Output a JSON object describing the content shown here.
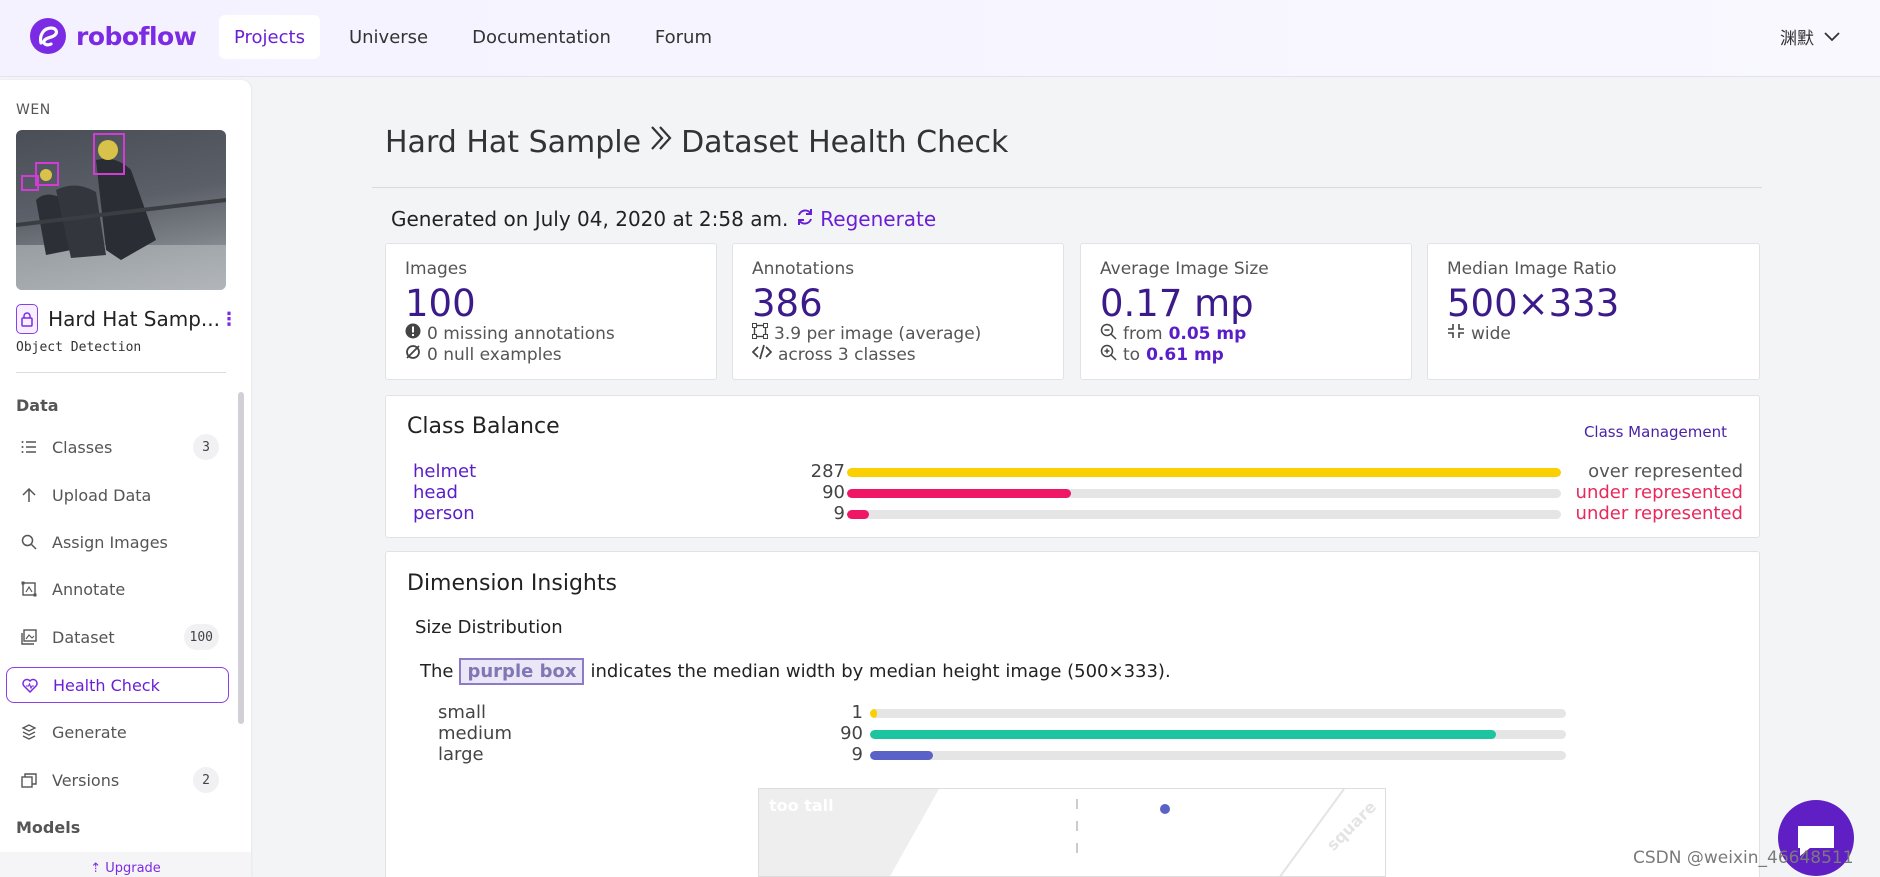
{
  "brand": {
    "name": "roboflow",
    "color": "#7c2be5"
  },
  "nav": {
    "items": [
      "Projects",
      "Universe",
      "Documentation",
      "Forum"
    ],
    "active": 0
  },
  "user": {
    "name": "渊默"
  },
  "sidebar": {
    "workspace": "WEN",
    "project_name": "Hard Hat Samp...",
    "project_type": "Object Detection",
    "sections": {
      "data": "Data",
      "models": "Models"
    },
    "items": [
      {
        "label": "Classes",
        "count": "3",
        "icon": "list-icon"
      },
      {
        "label": "Upload Data",
        "count": "",
        "icon": "upload-icon"
      },
      {
        "label": "Assign Images",
        "count": "",
        "icon": "search-icon"
      },
      {
        "label": "Annotate",
        "count": "",
        "icon": "annotate-icon"
      },
      {
        "label": "Dataset",
        "count": "100",
        "icon": "images-icon"
      },
      {
        "label": "Health Check",
        "count": "",
        "icon": "heart-icon"
      },
      {
        "label": "Generate",
        "count": "",
        "icon": "generate-icon"
      },
      {
        "label": "Versions",
        "count": "2",
        "icon": "versions-icon"
      }
    ],
    "upgrade": "Upgrade"
  },
  "header": {
    "project": "Hard Hat Sample",
    "page": "Dataset Health Check",
    "generated": "Generated on July 04, 2020 at 2:58 am.",
    "regenerate": "Regenerate"
  },
  "stats": {
    "images": {
      "label": "Images",
      "value": "100",
      "missing": "0 missing annotations",
      "null": "0 null examples"
    },
    "annotations": {
      "label": "Annotations",
      "value": "386",
      "per_image": "3.9 per image (average)",
      "classes": "across 3 classes"
    },
    "avg_size": {
      "label": "Average Image Size",
      "value": "0.17 mp",
      "from_label": "from",
      "from_value": "0.05 mp",
      "to_label": "to",
      "to_value": "0.61 mp"
    },
    "median_ratio": {
      "label": "Median Image Ratio",
      "value": "500×333",
      "shape": "wide"
    }
  },
  "class_balance": {
    "title": "Class Balance",
    "management": "Class Management",
    "max": 287,
    "classes": [
      {
        "name": "helmet",
        "count": 287,
        "status": "over represented",
        "color": "#fbd000",
        "status_color": "#555555"
      },
      {
        "name": "head",
        "count": 90,
        "status": "under represented",
        "color": "#ee1665",
        "status_color": "#e8285c"
      },
      {
        "name": "person",
        "count": 9,
        "status": "under represented",
        "color": "#ee1665",
        "status_color": "#e8285c"
      }
    ]
  },
  "dimension": {
    "title": "Dimension Insights",
    "subtitle": "Size Distribution",
    "desc_pre": "The",
    "desc_box": "purple box",
    "desc_post": "indicates the median width by median height image (500×333).",
    "max": 100,
    "sizes": [
      {
        "name": "small",
        "count": 1,
        "color": "#fbd000"
      },
      {
        "name": "medium",
        "count": 90,
        "color": "#1dc4a0"
      },
      {
        "name": "large",
        "count": 9,
        "color": "#5a62c8"
      }
    ],
    "scatter": {
      "too_tall": "too tall",
      "square": "square"
    }
  },
  "watermark": "CSDN @weixin_46648511"
}
